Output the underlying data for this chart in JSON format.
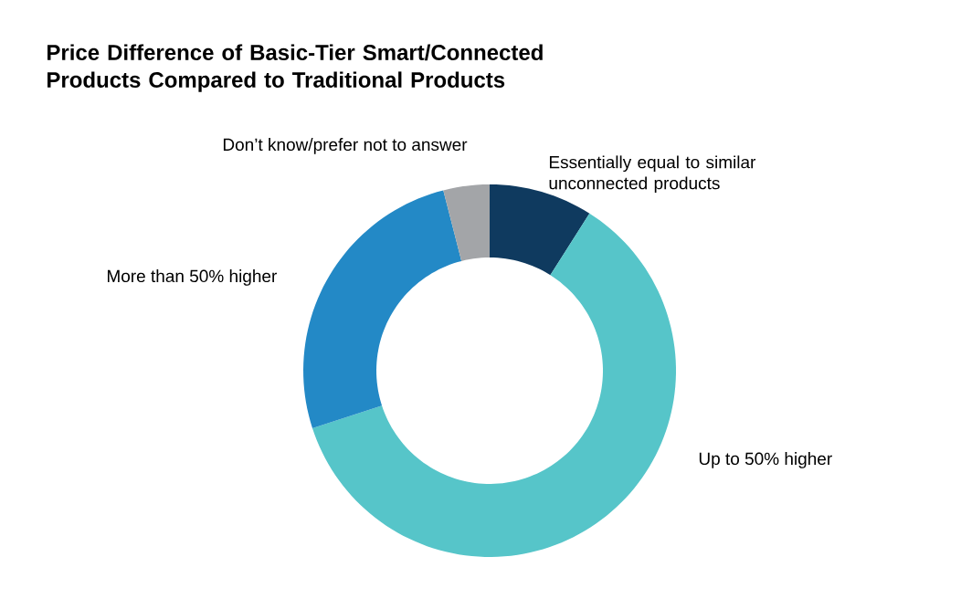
{
  "chart_data": {
    "type": "donut",
    "title": "Price Difference of Basic-Tier Smart/Connected Products Compared to Traditional Products",
    "categories": [
      "Essentially equal to similar unconnected products",
      "Up to 50% higher",
      "More than 50% higher",
      "Don’t know/prefer not to answer"
    ],
    "values": [
      9,
      61,
      26,
      4
    ],
    "colors": [
      "#0f3a5f",
      "#56c5c9",
      "#2389c6",
      "#a3a5a8"
    ]
  }
}
